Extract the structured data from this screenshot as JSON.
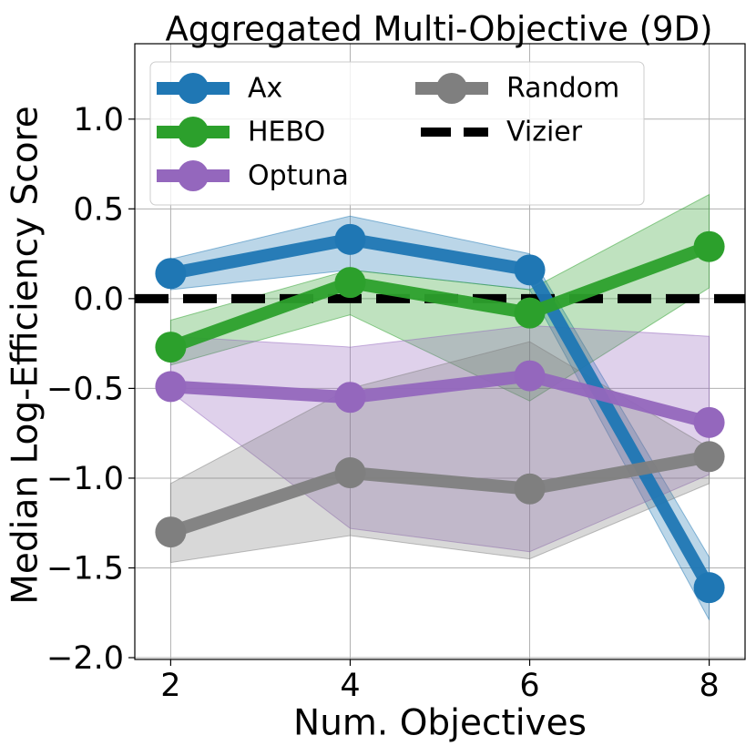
{
  "chart_data": {
    "type": "line",
    "title": "Aggregated Multi-Objective (9D)",
    "x_label": "Num. Objectives",
    "y_label": "Median Log-Efficiency Score",
    "x": [
      2,
      4,
      6,
      8
    ],
    "xlim": [
      1.6,
      8.4
    ],
    "ylim": [
      -2.01,
      1.42
    ],
    "xticks": [
      2,
      4,
      6,
      8
    ],
    "yticks": [
      {
        "value": -2,
        "label": "−2.0"
      },
      {
        "value": -1.5,
        "label": "−1.5"
      },
      {
        "value": -1,
        "label": "−1.0"
      },
      {
        "value": -0.5,
        "label": "−0.5"
      },
      {
        "value": 0,
        "label": "0.0"
      },
      {
        "value": 0.5,
        "label": "0.5"
      },
      {
        "value": 1,
        "label": "1.0"
      }
    ],
    "grid": true,
    "legend_position": "upper left",
    "series": [
      {
        "name": "Ax",
        "color": "#1f77b4",
        "values": [
          0.14,
          0.33,
          0.16,
          -1.61
        ],
        "lower": [
          0.05,
          0.16,
          0.05,
          -1.79
        ],
        "upper": [
          0.22,
          0.46,
          0.25,
          -1.44
        ]
      },
      {
        "name": "HEBO",
        "color": "#2ca02c",
        "values": [
          -0.27,
          0.09,
          -0.08,
          0.29
        ],
        "lower": [
          -0.37,
          -0.09,
          -0.57,
          0.06
        ],
        "upper": [
          -0.12,
          0.16,
          0.05,
          0.58
        ]
      },
      {
        "name": "Optuna",
        "color": "#9467bd",
        "values": [
          -0.49,
          -0.55,
          -0.43,
          -0.69
        ],
        "lower": [
          -0.52,
          -1.28,
          -1.41,
          -0.98
        ],
        "upper": [
          -0.21,
          -0.27,
          -0.15,
          -0.21
        ]
      },
      {
        "name": "Random",
        "color": "#7f7f7f",
        "values": [
          -1.3,
          -0.97,
          -1.06,
          -0.88
        ],
        "lower": [
          -1.47,
          -1.32,
          -1.45,
          -1.03
        ],
        "upper": [
          -1.03,
          -0.5,
          -0.24,
          -0.83
        ]
      }
    ],
    "reference_line": {
      "name": "Vizier",
      "value": 0,
      "color": "#000000"
    }
  }
}
